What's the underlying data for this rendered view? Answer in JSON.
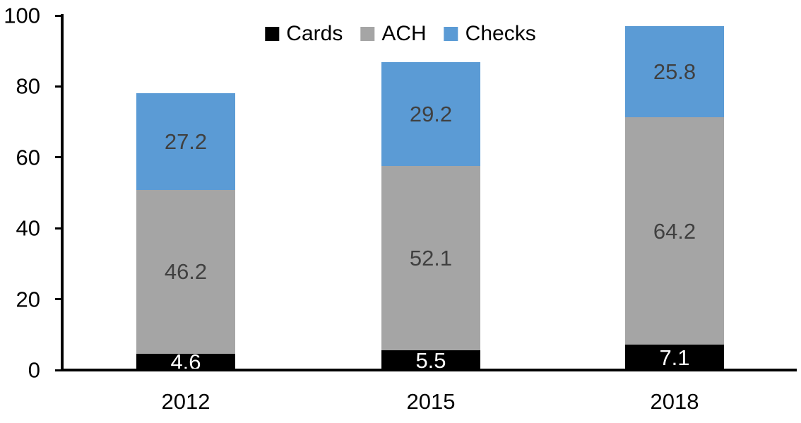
{
  "chart_data": {
    "type": "bar",
    "stacked": true,
    "title": "",
    "xlabel": "",
    "ylabel": "",
    "categories": [
      "2012",
      "2015",
      "2018"
    ],
    "series": [
      {
        "name": "Cards",
        "color": "#000000",
        "label_color": "#FFFFFF",
        "values": [
          4.6,
          5.5,
          7.1
        ]
      },
      {
        "name": "ACH",
        "color": "#A5A5A5",
        "label_color": "#404040",
        "values": [
          46.2,
          52.1,
          64.2
        ]
      },
      {
        "name": "Checks",
        "color": "#5B9BD5",
        "label_color": "#404040",
        "values": [
          27.2,
          29.2,
          25.8
        ]
      }
    ],
    "ylim": [
      0,
      100
    ],
    "yticks": [
      0,
      20,
      40,
      60,
      80,
      100
    ],
    "legend_position": "top-center",
    "grid": false,
    "background": "#FFFFFF",
    "axis_color": "#000000"
  }
}
